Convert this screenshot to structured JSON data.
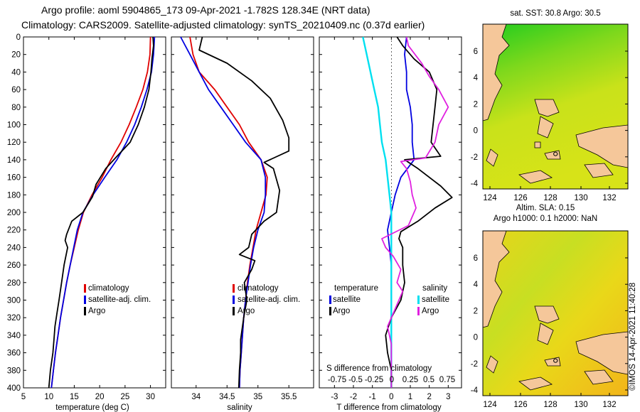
{
  "header": {
    "line1": "Argo profile: aoml 5904865_173 09-Apr-2021 -1.782S 128.34E (NRT data)",
    "line2": "Climatology: CARS2009. Satellite-adjusted climatology: synTS_20210409.nc (0.37d earlier)"
  },
  "colors": {
    "climatology": "#e00000",
    "satellite": "#0000e0",
    "argo": "#000000",
    "sat_salinity": "#00e0f0",
    "argo_salinity": "#e020e0",
    "land": "#f5c79a"
  },
  "chart_data": [
    {
      "type": "line",
      "id": "temperature",
      "xlabel": "temperature (deg C)",
      "ylabel": "depth",
      "xlim": [
        5,
        33
      ],
      "ylim": [
        400,
        0
      ],
      "xticks": [
        5,
        10,
        15,
        20,
        25,
        30
      ],
      "yticks": [
        0,
        20,
        40,
        60,
        80,
        100,
        120,
        140,
        160,
        180,
        200,
        220,
        240,
        260,
        280,
        300,
        320,
        340,
        360,
        380,
        400
      ],
      "legend": [
        "climatology",
        "satellite-adj. clim.",
        "Argo"
      ],
      "series": [
        {
          "name": "climatology",
          "color": "#e00000",
          "points": [
            [
              30,
              0
            ],
            [
              29.9,
              20
            ],
            [
              29.4,
              40
            ],
            [
              28.5,
              60
            ],
            [
              27.2,
              80
            ],
            [
              25.8,
              100
            ],
            [
              24.2,
              120
            ],
            [
              22.2,
              140
            ],
            [
              20.5,
              160
            ],
            [
              18.5,
              180
            ],
            [
              16.8,
              200
            ],
            [
              15.8,
              220
            ],
            [
              15,
              240
            ],
            [
              14.2,
              260
            ],
            [
              13.5,
              280
            ],
            [
              12.9,
              300
            ],
            [
              12.3,
              320
            ],
            [
              11.8,
              340
            ],
            [
              11.3,
              360
            ],
            [
              10.9,
              380
            ],
            [
              10.5,
              400
            ]
          ]
        },
        {
          "name": "satellite-adj. clim.",
          "color": "#0000e0",
          "points": [
            [
              30.8,
              0
            ],
            [
              30.6,
              20
            ],
            [
              30.2,
              40
            ],
            [
              29.3,
              60
            ],
            [
              28.2,
              80
            ],
            [
              26.9,
              100
            ],
            [
              25.3,
              120
            ],
            [
              23.4,
              140
            ],
            [
              21,
              160
            ],
            [
              18.7,
              180
            ],
            [
              16.7,
              200
            ],
            [
              15.6,
              220
            ],
            [
              14.9,
              240
            ],
            [
              14.2,
              260
            ],
            [
              13.5,
              280
            ],
            [
              12.9,
              300
            ],
            [
              12.3,
              320
            ],
            [
              11.8,
              340
            ],
            [
              11.3,
              360
            ],
            [
              10.9,
              380
            ],
            [
              10.5,
              400
            ]
          ]
        },
        {
          "name": "Argo",
          "color": "#000000",
          "points": [
            [
              30.5,
              0
            ],
            [
              30.6,
              10
            ],
            [
              30.3,
              25
            ],
            [
              30.1,
              40
            ],
            [
              29.7,
              60
            ],
            [
              28.8,
              80
            ],
            [
              27.6,
              100
            ],
            [
              26,
              120
            ],
            [
              23.1,
              138
            ],
            [
              21.2,
              150
            ],
            [
              19.3,
              168
            ],
            [
              18.6,
              182
            ],
            [
              16.7,
              200
            ],
            [
              14.5,
              210
            ],
            [
              13.5,
              225
            ],
            [
              13.2,
              232
            ],
            [
              13.7,
              240
            ],
            [
              13,
              260
            ],
            [
              12.5,
              280
            ],
            [
              12,
              300
            ],
            [
              11.6,
              315
            ],
            [
              11.2,
              330
            ],
            [
              11,
              345
            ],
            [
              10.8,
              360
            ],
            [
              10.3,
              380
            ],
            [
              10,
              400
            ]
          ]
        }
      ]
    },
    {
      "type": "line",
      "id": "salinity",
      "xlabel": "salinity",
      "ylabel": "depth",
      "xlim": [
        33.6,
        35.9
      ],
      "ylim": [
        400,
        0
      ],
      "xticks": [
        34,
        34.5,
        35,
        35.5
      ],
      "legend": [
        "climatology",
        "satellite-adj. clim.",
        "Argo"
      ],
      "series": [
        {
          "name": "climatology",
          "color": "#e00000",
          "points": [
            [
              33.9,
              0
            ],
            [
              33.95,
              20
            ],
            [
              34.05,
              40
            ],
            [
              34.3,
              60
            ],
            [
              34.5,
              80
            ],
            [
              34.7,
              100
            ],
            [
              34.85,
              120
            ],
            [
              35.05,
              140
            ],
            [
              35.15,
              160
            ],
            [
              35.13,
              180
            ],
            [
              35.05,
              200
            ],
            [
              34.97,
              220
            ],
            [
              34.92,
              240
            ],
            [
              34.87,
              260
            ],
            [
              34.83,
              280
            ],
            [
              34.8,
              300
            ],
            [
              34.77,
              320
            ],
            [
              34.75,
              340
            ],
            [
              34.73,
              360
            ],
            [
              34.71,
              380
            ],
            [
              34.7,
              400
            ]
          ]
        },
        {
          "name": "satellite-adj. clim.",
          "color": "#0000e0",
          "points": [
            [
              33.75,
              0
            ],
            [
              33.9,
              20
            ],
            [
              34.05,
              40
            ],
            [
              34.2,
              60
            ],
            [
              34.4,
              80
            ],
            [
              34.6,
              100
            ],
            [
              34.8,
              120
            ],
            [
              35.05,
              140
            ],
            [
              35.12,
              160
            ],
            [
              35.12,
              180
            ],
            [
              35.1,
              200
            ],
            [
              35,
              220
            ],
            [
              34.93,
              240
            ],
            [
              34.88,
              260
            ],
            [
              34.84,
              280
            ],
            [
              34.8,
              300
            ],
            [
              34.77,
              320
            ],
            [
              34.75,
              340
            ],
            [
              34.73,
              360
            ],
            [
              34.71,
              380
            ],
            [
              34.7,
              400
            ]
          ]
        },
        {
          "name": "Argo",
          "color": "#000000",
          "points": [
            [
              34.1,
              0
            ],
            [
              34.05,
              15
            ],
            [
              34.5,
              30
            ],
            [
              34.9,
              50
            ],
            [
              35.2,
              70
            ],
            [
              35.4,
              95
            ],
            [
              35.5,
              115
            ],
            [
              35.5,
              130
            ],
            [
              35.1,
              143
            ],
            [
              35.25,
              150
            ],
            [
              35.35,
              175
            ],
            [
              35.3,
              200
            ],
            [
              35.1,
              210
            ],
            [
              34.9,
              225
            ],
            [
              34.85,
              240
            ],
            [
              34.7,
              248
            ],
            [
              34.95,
              255
            ],
            [
              34.9,
              265
            ],
            [
              34.78,
              280
            ],
            [
              34.82,
              300
            ],
            [
              34.77,
              320
            ],
            [
              34.72,
              345
            ],
            [
              34.72,
              360
            ],
            [
              34.7,
              380
            ],
            [
              34.69,
              400
            ]
          ]
        }
      ]
    },
    {
      "type": "line",
      "id": "difference",
      "xlabel": "T difference from climatology",
      "xlabel_top": "S difference from climatology",
      "xlim": [
        -3.8,
        3.7
      ],
      "ylim": [
        400,
        0
      ],
      "xticks": [
        -3,
        -2,
        -1,
        0,
        1,
        2,
        3
      ],
      "xticks_top": [
        "-0.75",
        "-0.5",
        "-0.25",
        "0",
        "0.25",
        "0.5",
        "0.75"
      ],
      "legend_temperature": [
        "temperature",
        "satellite",
        "Argo"
      ],
      "legend_salinity": [
        "salinity",
        "satellite",
        "Argo"
      ],
      "series": [
        {
          "name": "temperature satellite",
          "color": "#0000e0",
          "points": [
            [
              0.8,
              0
            ],
            [
              0.7,
              20
            ],
            [
              0.8,
              40
            ],
            [
              0.8,
              60
            ],
            [
              1,
              80
            ],
            [
              1.1,
              100
            ],
            [
              1.1,
              120
            ],
            [
              1.2,
              140
            ],
            [
              0.5,
              160
            ],
            [
              0.2,
              180
            ],
            [
              0,
              200
            ],
            [
              -0.2,
              220
            ],
            [
              -0.1,
              240
            ],
            [
              0,
              260
            ],
            [
              0,
              280
            ],
            [
              0,
              300
            ],
            [
              0,
              320
            ],
            [
              0,
              340
            ],
            [
              0,
              360
            ],
            [
              0,
              380
            ],
            [
              0,
              400
            ]
          ]
        },
        {
          "name": "salinity satellite",
          "color": "#00e0f0",
          "points": [
            [
              -1.5,
              0
            ],
            [
              -1.3,
              20
            ],
            [
              -1.1,
              40
            ],
            [
              -0.9,
              60
            ],
            [
              -0.7,
              80
            ],
            [
              -0.6,
              100
            ],
            [
              -0.5,
              120
            ],
            [
              -0.3,
              140
            ],
            [
              -0.2,
              160
            ],
            [
              -0.1,
              180
            ],
            [
              0,
              200
            ],
            [
              0,
              220
            ],
            [
              0,
              240
            ],
            [
              0,
              260
            ],
            [
              0,
              280
            ],
            [
              0,
              300
            ],
            [
              0,
              320
            ],
            [
              0,
              340
            ],
            [
              0,
              360
            ],
            [
              0,
              380
            ],
            [
              0,
              400
            ]
          ]
        },
        {
          "name": "temperature Argo",
          "color": "#000000",
          "points": [
            [
              0.3,
              0
            ],
            [
              0.6,
              10
            ],
            [
              1.2,
              25
            ],
            [
              2,
              40
            ],
            [
              2.4,
              60
            ],
            [
              2.3,
              80
            ],
            [
              2.2,
              100
            ],
            [
              2.1,
              120
            ],
            [
              2.6,
              136
            ],
            [
              0.7,
              140
            ],
            [
              1.4,
              150
            ],
            [
              2.6,
              170
            ],
            [
              3.2,
              183
            ],
            [
              2.3,
              195
            ],
            [
              1.4,
              210
            ],
            [
              0.5,
              222
            ],
            [
              0.4,
              230
            ],
            [
              0.6,
              240
            ],
            [
              0.6,
              260
            ],
            [
              0.7,
              280
            ],
            [
              0.5,
              300
            ],
            [
              0,
              320
            ],
            [
              -0.3,
              340
            ],
            [
              -0.2,
              360
            ],
            [
              0,
              380
            ],
            [
              0,
              400
            ]
          ]
        },
        {
          "name": "salinity Argo",
          "color": "#e020e0",
          "points": [
            [
              0.8,
              0
            ],
            [
              0.9,
              10
            ],
            [
              1.6,
              30
            ],
            [
              2,
              45
            ],
            [
              2.5,
              60
            ],
            [
              3,
              80
            ],
            [
              2.5,
              100
            ],
            [
              2.3,
              120
            ],
            [
              1.8,
              138
            ],
            [
              0.5,
              142
            ],
            [
              0.8,
              150
            ],
            [
              1,
              165
            ],
            [
              1.1,
              180
            ],
            [
              1.3,
              195
            ],
            [
              0.9,
              215
            ],
            [
              -0.5,
              230
            ],
            [
              -0.3,
              240
            ],
            [
              0.1,
              250
            ],
            [
              0.5,
              265
            ],
            [
              0.3,
              280
            ],
            [
              0.6,
              290
            ],
            [
              0.2,
              310
            ],
            [
              -0.2,
              330
            ],
            [
              0,
              350
            ],
            [
              0,
              370
            ],
            [
              0,
              380
            ],
            [
              0,
              400
            ]
          ]
        }
      ]
    }
  ],
  "maps": {
    "sst": {
      "title": "sat. SST: 30.8 Argo: 30.5",
      "xticks": [
        "124",
        "126",
        "128",
        "130",
        "132"
      ],
      "yticks": [
        "6",
        "4",
        "2",
        "0",
        "-2",
        "-4"
      ]
    },
    "sla": {
      "title_line1": "Altim. SLA: 0.15",
      "title_line2": "Argo h1000: 0.1 h2000: NaN",
      "xticks": [
        "124",
        "126",
        "128",
        "130",
        "132"
      ],
      "yticks": [
        "6",
        "4",
        "2",
        "0",
        "-2",
        "-4"
      ]
    }
  },
  "footer": {
    "credit": "©IMOS 14-Apr-2021 11:40:28"
  }
}
